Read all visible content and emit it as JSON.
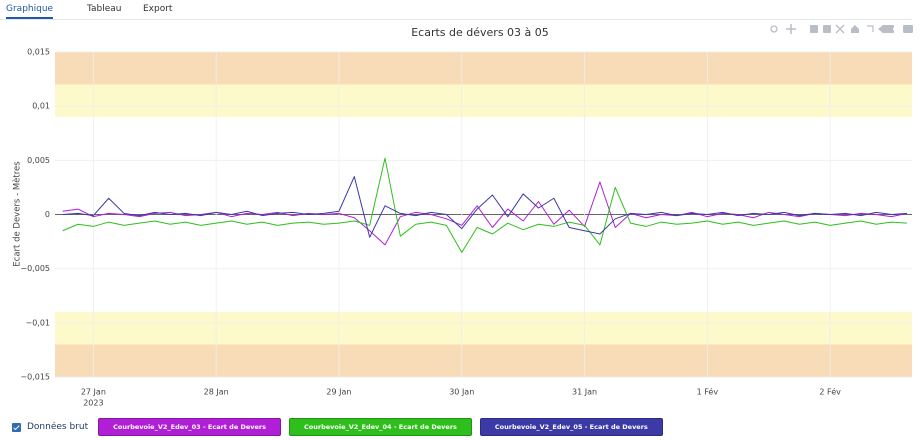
{
  "tabs": [
    "Graphique",
    "Tableau",
    "Export"
  ],
  "checkbox_label": "Données brut",
  "chart_data": {
    "type": "line",
    "title": "Ecarts de dévers 03 à 05",
    "y_label": "Ecart de Devers - Mètres",
    "xlim": [
      "2023-01-26T16:30",
      "2023-02-02T16:00"
    ],
    "xticks": [
      {
        "value": "2023-01-27T00:00",
        "label": "27 Jan"
      },
      {
        "value": "2023-01-28T00:00",
        "label": "28 Jan"
      },
      {
        "value": "2023-01-29T00:00",
        "label": "29 Jan"
      },
      {
        "value": "2023-01-30T00:00",
        "label": "30 Jan"
      },
      {
        "value": "2023-01-31T00:00",
        "label": "31 Jan"
      },
      {
        "value": "2023-02-01T00:00",
        "label": "1 Fév"
      },
      {
        "value": "2023-02-02T00:00",
        "label": "2 Fév"
      }
    ],
    "x_year_label": "2023",
    "ylim": [
      -0.015,
      0.015
    ],
    "yticks": [
      {
        "value": -0.015,
        "label": "−0,015"
      },
      {
        "value": -0.01,
        "label": "−0,01"
      },
      {
        "value": -0.005,
        "label": "−0,005"
      },
      0,
      {
        "value": 0.005,
        "label": "0,005"
      },
      {
        "value": 0.01,
        "label": "0,01"
      },
      {
        "value": 0.015,
        "label": "0,015"
      }
    ],
    "grid": true,
    "bands": [
      {
        "from": 0.012,
        "to": 0.015,
        "color": "#f8dcb8"
      },
      {
        "from": 0.009,
        "to": 0.012,
        "color": "#fdf9cb"
      },
      {
        "from": -0.012,
        "to": -0.009,
        "color": "#fdf9cb"
      },
      {
        "from": -0.015,
        "to": -0.012,
        "color": "#f8dcb8"
      }
    ],
    "x": [
      "2023-01-26T18:00",
      "2023-01-26T21:00",
      "2023-01-27T00:00",
      "2023-01-27T03:00",
      "2023-01-27T06:00",
      "2023-01-27T09:00",
      "2023-01-27T12:00",
      "2023-01-27T15:00",
      "2023-01-27T18:00",
      "2023-01-27T21:00",
      "2023-01-28T00:00",
      "2023-01-28T03:00",
      "2023-01-28T06:00",
      "2023-01-28T09:00",
      "2023-01-28T12:00",
      "2023-01-28T15:00",
      "2023-01-28T18:00",
      "2023-01-28T21:00",
      "2023-01-29T00:00",
      "2023-01-29T03:00",
      "2023-01-29T06:00",
      "2023-01-29T09:00",
      "2023-01-29T12:00",
      "2023-01-29T15:00",
      "2023-01-29T18:00",
      "2023-01-29T21:00",
      "2023-01-30T00:00",
      "2023-01-30T03:00",
      "2023-01-30T06:00",
      "2023-01-30T09:00",
      "2023-01-30T12:00",
      "2023-01-30T15:00",
      "2023-01-30T18:00",
      "2023-01-30T21:00",
      "2023-01-31T00:00",
      "2023-01-31T03:00",
      "2023-01-31T06:00",
      "2023-01-31T09:00",
      "2023-01-31T12:00",
      "2023-01-31T15:00",
      "2023-01-31T18:00",
      "2023-01-31T21:00",
      "2023-02-01T00:00",
      "2023-02-01T03:00",
      "2023-02-01T06:00",
      "2023-02-01T09:00",
      "2023-02-01T12:00",
      "2023-02-01T15:00",
      "2023-02-01T18:00",
      "2023-02-01T21:00",
      "2023-02-02T00:00",
      "2023-02-02T03:00",
      "2023-02-02T06:00",
      "2023-02-02T09:00",
      "2023-02-02T12:00",
      "2023-02-02T15:00"
    ],
    "series": [
      {
        "name": "Courbevoie_V2_Edev_03 - Ecart de Devers",
        "color": "#b01fd6",
        "values": [
          0.0003,
          0.0005,
          -0.0002,
          0.0001,
          0.0,
          -0.0002,
          0.0001,
          0.0002,
          -0.0001,
          0.0,
          0.0002,
          -0.0002,
          0.0001,
          0.0,
          0.0002,
          -0.0001,
          0.0001,
          0.0,
          0.0001,
          -0.0003,
          -0.0015,
          -0.0028,
          -0.0002,
          0.0002,
          0.0,
          -0.0004,
          -0.001,
          0.0008,
          -0.0012,
          0.0005,
          -0.0006,
          0.0012,
          -0.0009,
          0.0004,
          -0.0011,
          0.003,
          -0.0012,
          0.0001,
          -0.0003,
          0.0,
          -0.0001,
          0.0002,
          -0.0002,
          0.0001,
          0.0,
          -0.0003,
          0.0002,
          0.0,
          -0.0002,
          0.0001,
          0.0,
          -0.0001,
          0.0001,
          0.0,
          -0.0002,
          0.0001
        ]
      },
      {
        "name": "Courbevoie_V2_Edev_04 - Ecart de Devers",
        "color": "#2fbf1c",
        "values": [
          -0.0015,
          -0.0009,
          -0.0011,
          -0.0007,
          -0.001,
          -0.0008,
          -0.0006,
          -0.0009,
          -0.0007,
          -0.001,
          -0.0008,
          -0.0006,
          -0.0009,
          -0.0007,
          -0.001,
          -0.0008,
          -0.0007,
          -0.0009,
          -0.0008,
          -0.0006,
          -0.001,
          0.0052,
          -0.002,
          -0.0009,
          -0.0007,
          -0.001,
          -0.0035,
          -0.0012,
          -0.0018,
          -0.0008,
          -0.0014,
          -0.0009,
          -0.0011,
          -0.0007,
          -0.001,
          -0.0028,
          0.0025,
          -0.0008,
          -0.0011,
          -0.0007,
          -0.0009,
          -0.0008,
          -0.0006,
          -0.0009,
          -0.0007,
          -0.001,
          -0.0008,
          -0.0006,
          -0.0009,
          -0.0007,
          -0.001,
          -0.0008,
          -0.0006,
          -0.0009,
          -0.0007,
          -0.0008
        ]
      },
      {
        "name": "Courbevoie_V2_Edev_05 - Ecart de Devers",
        "color": "#3b3aa6",
        "values": [
          0.0,
          0.0001,
          -0.0001,
          0.0015,
          0.0001,
          -0.0001,
          0.0002,
          0.0,
          0.0001,
          -0.0001,
          0.0002,
          0.0,
          0.0003,
          -0.0001,
          0.0001,
          0.0002,
          0.0,
          0.0001,
          0.0003,
          0.0035,
          -0.0021,
          0.0008,
          0.0001,
          -0.0001,
          0.0002,
          0.0,
          -0.0013,
          0.0005,
          0.0018,
          -0.0002,
          0.0019,
          0.0006,
          0.0015,
          -0.0012,
          -0.0015,
          -0.0018,
          -0.0004,
          0.0001,
          0.0,
          0.0002,
          -0.0001,
          0.0001,
          0.0,
          0.0002,
          -0.0001,
          0.0001,
          0.0,
          0.0002,
          -0.0001,
          0.0001,
          0.0,
          0.0001,
          -0.0001,
          0.0002,
          0.0,
          0.0001
        ]
      }
    ]
  }
}
